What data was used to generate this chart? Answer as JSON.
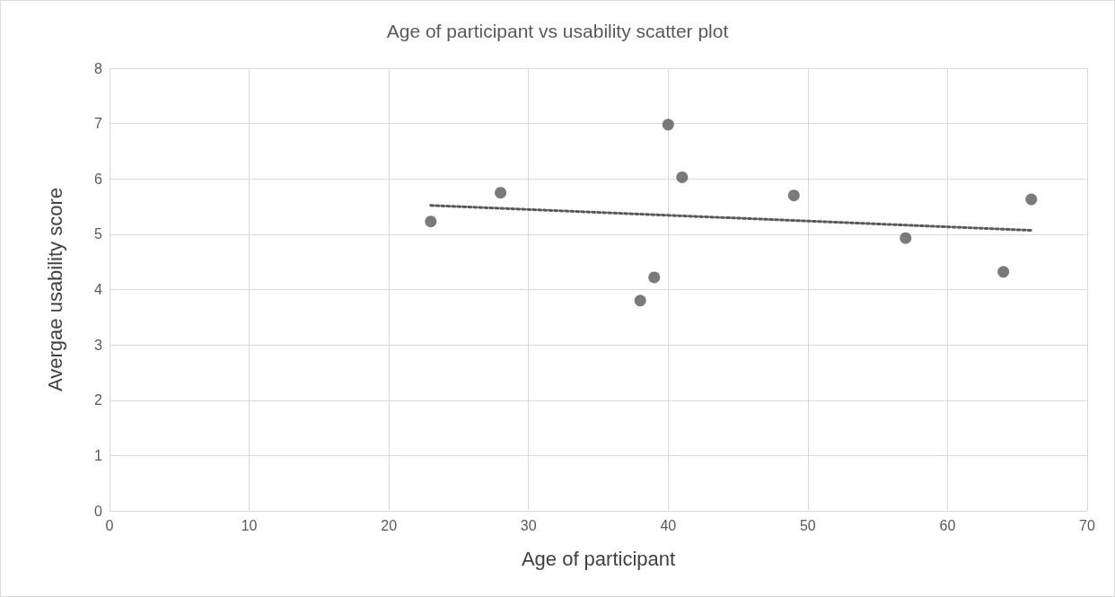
{
  "chart_data": {
    "type": "scatter",
    "title": "Age of participant vs usability scatter plot",
    "xlabel": "Age of participant",
    "ylabel": "Avergae usability score",
    "x": [
      23,
      28,
      38,
      39,
      40,
      41,
      49,
      57,
      64,
      66
    ],
    "series": [
      {
        "color": "#595959",
        "marker": "circle",
        "values": [
          5.23,
          5.75,
          3.8,
          4.22,
          6.98,
          6.03,
          5.7,
          4.93,
          4.32,
          5.63
        ]
      },
      {
        "type": "line",
        "color": "#595959",
        "marker": "none",
        "line_style": "dotted",
        "x": [
          23,
          66
        ],
        "values": [
          5.52,
          5.07
        ]
      }
    ],
    "xlim": [
      0,
      70
    ],
    "xticks": [
      0,
      10,
      20,
      30,
      40,
      50,
      60,
      70
    ],
    "ylim": [
      0,
      8
    ],
    "yticks": [
      0,
      1,
      2,
      3,
      4,
      5,
      6,
      7,
      8
    ],
    "grid": true
  }
}
